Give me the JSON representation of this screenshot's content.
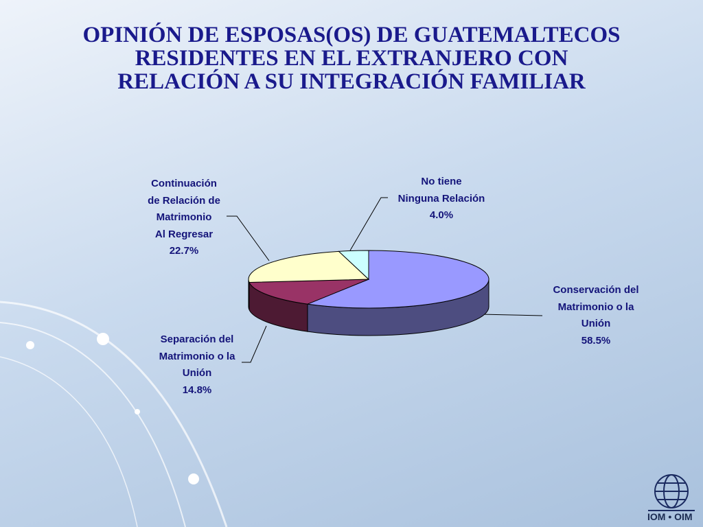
{
  "chart_data": {
    "type": "pie3d",
    "title": "OPINIÓN DE ESPOSAS(OS) DE GUATEMALTECOS\nRESIDENTES EN EL EXTRANJERO CON\nRELACIÓN A SU INTEGRACIÓN FAMILIAR",
    "categories": [
      "Conservación del\nMatrimonio o la\nUnión",
      "Separación del\nMatrimonio o la\nUnión",
      "Continuación\nde Relación de\nMatrimonio\nAl Regresar",
      "No tiene\nNinguna Relación"
    ],
    "values": [
      58.5,
      14.8,
      22.7,
      4.0
    ],
    "value_labels": [
      "58.5%",
      "14.8%",
      "22.7%",
      "4.0%"
    ],
    "colors": [
      "#9999ff",
      "#993366",
      "#ffffcc",
      "#ccffff"
    ]
  },
  "logo_text": "IOM • OIM"
}
